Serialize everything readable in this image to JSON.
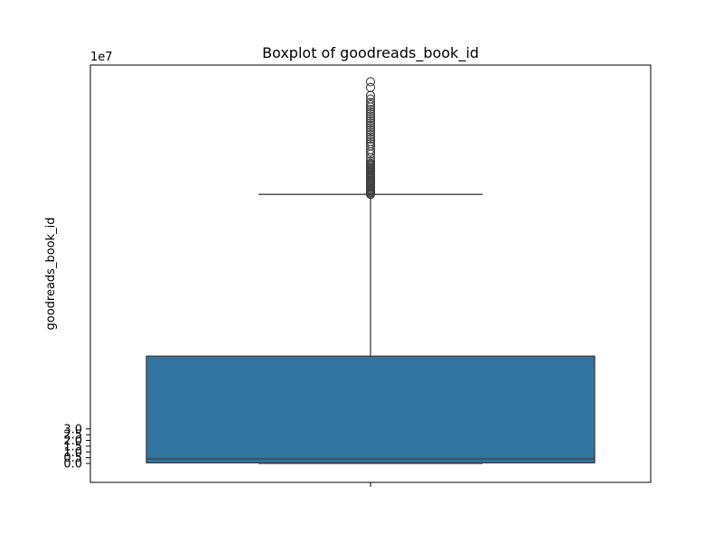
{
  "chart_data": {
    "type": "box",
    "title": "Boxplot of goodreads_book_id",
    "xlabel": "",
    "ylabel": "goodreads_book_id",
    "y_scale_label": "1e7",
    "ylim": [
      -1.65,
      34.65
    ],
    "y_unit_multiplier": 10000000,
    "yticks": [
      0.0,
      0.5,
      1.0,
      1.5,
      2.0,
      2.5,
      3.0
    ],
    "ytick_labels": [
      "0.0",
      "0.5",
      "1.0",
      "1.5",
      "2.0",
      "2.5",
      "3.0"
    ],
    "grid": false,
    "box": {
      "color": "#3274a1",
      "whisker_low": 0.0,
      "q1": 0.05,
      "median": 0.39,
      "q3": 9.33,
      "whisker_high": 23.4,
      "outliers": [
        23.4,
        23.5,
        23.6,
        23.7,
        23.8,
        23.9,
        24.0,
        24.1,
        24.2,
        24.3,
        24.4,
        24.5,
        24.6,
        24.7,
        24.8,
        24.9,
        25.0,
        25.1,
        25.2,
        25.3,
        25.4,
        25.5,
        25.6,
        25.7,
        25.8,
        25.9,
        26.0,
        26.1,
        26.3,
        26.6,
        26.9,
        27.1,
        27.3,
        27.6,
        27.8,
        28.0,
        28.2,
        28.4,
        28.6,
        28.8,
        29.0,
        29.2,
        29.4,
        29.6,
        29.8,
        30.0,
        30.2,
        30.4,
        30.6,
        30.8,
        31.0,
        31.2,
        31.4,
        31.7,
        32.0,
        32.7,
        33.2
      ]
    }
  }
}
